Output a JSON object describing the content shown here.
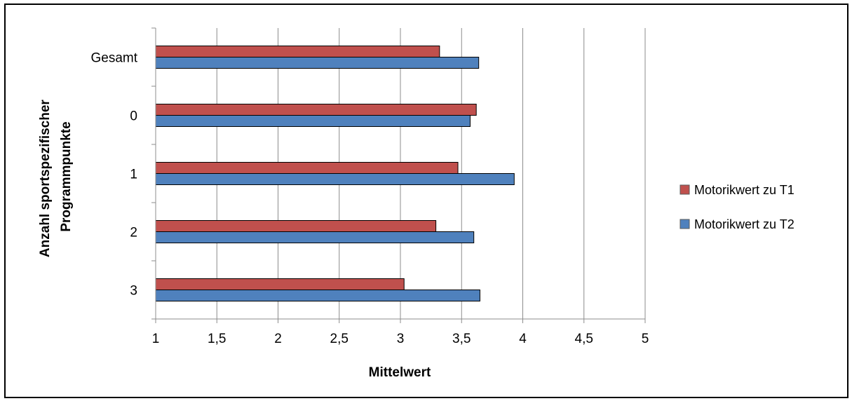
{
  "chart_data": {
    "type": "bar",
    "orientation": "horizontal",
    "categories": [
      "Gesamt",
      "0",
      "1",
      "2",
      "3"
    ],
    "series": [
      {
        "name": "Motorikwert zu T1",
        "color": "#C0504D",
        "values": [
          3.32,
          3.62,
          3.47,
          3.29,
          3.03
        ]
      },
      {
        "name": "Motorikwert zu T2",
        "color": "#4F81BD",
        "values": [
          3.64,
          3.57,
          3.93,
          3.6,
          3.65
        ]
      }
    ],
    "xlim": [
      1,
      5
    ],
    "xticks": [
      "1",
      "1,5",
      "2",
      "2,5",
      "3",
      "3,5",
      "4",
      "4,5",
      "5"
    ],
    "xlabel": "Mittelwert",
    "ylabel_lines": [
      "Anzahl sportspezifischer",
      "Programmpunkte"
    ],
    "grid": "vertical",
    "legend_position": "right"
  }
}
